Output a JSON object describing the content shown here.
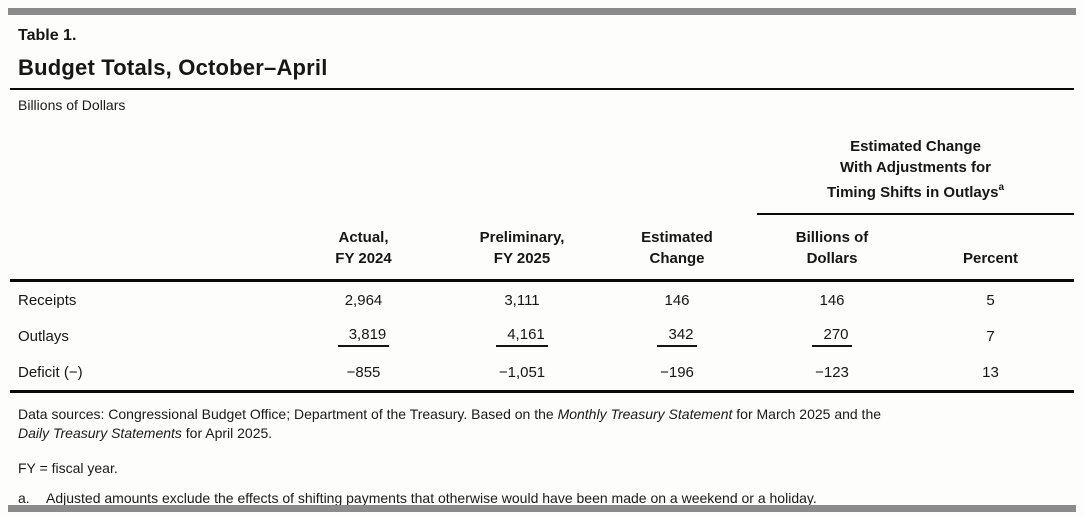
{
  "table": {
    "label": "Table 1.",
    "title": "Budget Totals, October–April",
    "unit_note": "Billions of Dollars",
    "spanner": {
      "line1": "Estimated Change",
      "line2": "With Adjustments for",
      "line3": "Timing Shifts in Outlays",
      "superscript": "a"
    },
    "columns": [
      {
        "lines": [
          "Actual,",
          "FY 2024"
        ]
      },
      {
        "lines": [
          "Preliminary,",
          "FY 2025"
        ]
      },
      {
        "lines": [
          "Estimated",
          "Change"
        ]
      },
      {
        "lines": [
          "Billions of",
          "Dollars"
        ]
      },
      {
        "lines": [
          "Percent"
        ]
      }
    ],
    "rows": [
      {
        "label": "Receipts",
        "values": [
          "2,964",
          "3,111",
          "146",
          "146",
          "5"
        ],
        "underlines": [
          false,
          false,
          false,
          false,
          false
        ]
      },
      {
        "label": "Outlays",
        "values": [
          "3,819",
          "4,161",
          "342",
          "270",
          "7"
        ],
        "underlines": [
          true,
          true,
          true,
          true,
          false
        ]
      },
      {
        "label": "Deficit (−)",
        "values": [
          "−855",
          "−1,051",
          "−196",
          "−123",
          "13"
        ],
        "underlines": [
          false,
          false,
          false,
          false,
          false
        ]
      }
    ]
  },
  "notes": {
    "data_sources": {
      "prefix": "Data sources: Congressional Budget Office; Department of the Treasury. Based on the ",
      "italic1": "Monthly Treasury Statement",
      "middle": " for March 2025 and the",
      "italic2": "Daily Treasury Statements",
      "suffix": " for April 2025."
    },
    "fy_note": "FY = fiscal year.",
    "footnote_a": {
      "marker": "a.",
      "text": "Adjusted amounts exclude the effects of shifting payments that otherwise would have been made on a weekend or a holiday."
    }
  },
  "colors": {
    "page_background": "#fdfdfc",
    "text": "#161616",
    "rule": "#0a0a0a",
    "divider_bar": "#8b8b8b"
  }
}
